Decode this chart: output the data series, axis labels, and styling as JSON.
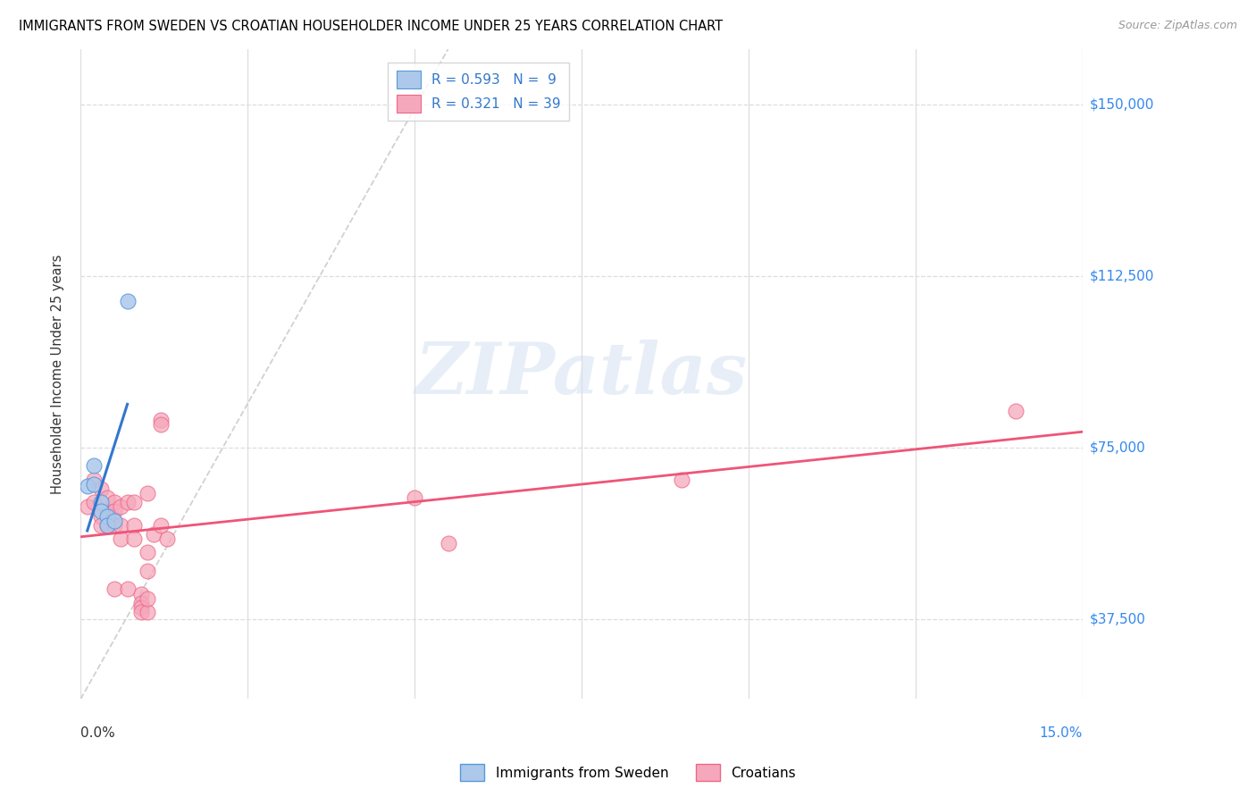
{
  "title": "IMMIGRANTS FROM SWEDEN VS CROATIAN HOUSEHOLDER INCOME UNDER 25 YEARS CORRELATION CHART",
  "source": "Source: ZipAtlas.com",
  "ylabel": "Householder Income Under 25 years",
  "ytick_labels": [
    "$37,500",
    "$75,000",
    "$112,500",
    "$150,000"
  ],
  "ytick_values": [
    37500,
    75000,
    112500,
    150000
  ],
  "xmin": 0.0,
  "xmax": 0.15,
  "ymin": 20000,
  "ymax": 162000,
  "legend_sweden_R": "0.593",
  "legend_sweden_N": "9",
  "legend_croatian_R": "0.321",
  "legend_croatian_N": "39",
  "sweden_fill": "#adc8ea",
  "sweden_edge": "#5599dd",
  "croatia_fill": "#f5a8bc",
  "croatia_edge": "#ee6688",
  "sweden_line_color": "#3377cc",
  "croatia_line_color": "#ee5577",
  "ref_line_color": "#cccccc",
  "watermark_color": "#d0dff0",
  "sweden_points": [
    [
      0.001,
      66500
    ],
    [
      0.002,
      71000
    ],
    [
      0.002,
      67000
    ],
    [
      0.003,
      63000
    ],
    [
      0.003,
      61000
    ],
    [
      0.004,
      60000
    ],
    [
      0.004,
      58000
    ],
    [
      0.005,
      59000
    ],
    [
      0.007,
      107000
    ]
  ],
  "croatia_points": [
    [
      0.001,
      62000
    ],
    [
      0.002,
      68000
    ],
    [
      0.002,
      63000
    ],
    [
      0.003,
      66000
    ],
    [
      0.003,
      60000
    ],
    [
      0.003,
      58000
    ],
    [
      0.004,
      64000
    ],
    [
      0.004,
      61000
    ],
    [
      0.004,
      58000
    ],
    [
      0.005,
      63000
    ],
    [
      0.005,
      61000
    ],
    [
      0.005,
      58000
    ],
    [
      0.005,
      44000
    ],
    [
      0.006,
      62000
    ],
    [
      0.006,
      58000
    ],
    [
      0.006,
      55000
    ],
    [
      0.007,
      63000
    ],
    [
      0.007,
      44000
    ],
    [
      0.008,
      63000
    ],
    [
      0.008,
      58000
    ],
    [
      0.008,
      55000
    ],
    [
      0.009,
      43000
    ],
    [
      0.009,
      41000
    ],
    [
      0.009,
      40000
    ],
    [
      0.009,
      39000
    ],
    [
      0.01,
      65000
    ],
    [
      0.01,
      52000
    ],
    [
      0.01,
      48000
    ],
    [
      0.01,
      39000
    ],
    [
      0.01,
      42000
    ],
    [
      0.011,
      56000
    ],
    [
      0.012,
      81000
    ],
    [
      0.012,
      80000
    ],
    [
      0.012,
      58000
    ],
    [
      0.013,
      55000
    ],
    [
      0.05,
      64000
    ],
    [
      0.055,
      54000
    ],
    [
      0.09,
      68000
    ],
    [
      0.14,
      83000
    ]
  ],
  "ref_line_x": [
    0.0,
    0.055
  ],
  "ref_line_y": [
    20000,
    162000
  ]
}
